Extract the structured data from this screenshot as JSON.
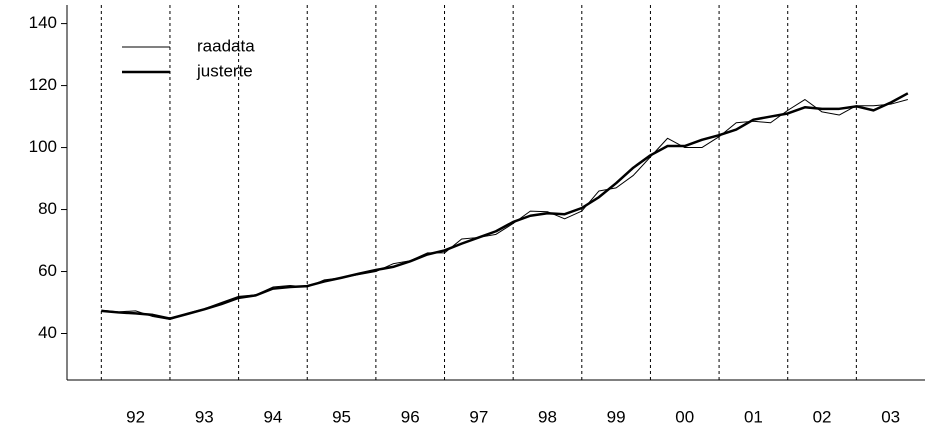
{
  "chart_data": {
    "type": "line",
    "x": [
      1992,
      1992.25,
      1992.5,
      1992.75,
      1993,
      1993.25,
      1993.5,
      1993.75,
      1994,
      1994.25,
      1994.5,
      1994.75,
      1995,
      1995.25,
      1995.5,
      1995.75,
      1996,
      1996.25,
      1996.5,
      1996.75,
      1997,
      1997.25,
      1997.5,
      1997.75,
      1998,
      1998.25,
      1998.5,
      1998.75,
      1999,
      1999.25,
      1999.5,
      1999.75,
      2000,
      2000.25,
      2000.5,
      2000.75,
      2001,
      2001.25,
      2001.5,
      2001.75,
      2002,
      2002.25,
      2002.5,
      2002.75,
      2003,
      2003.25,
      2003.5,
      2003.75
    ],
    "series": [
      {
        "name": "raadata",
        "color": "#000000",
        "width": 1,
        "values": [
          47.5,
          47.0,
          47.3,
          45.5,
          44.5,
          46.5,
          48.0,
          50.0,
          52.0,
          52.5,
          55.0,
          55.5,
          55.0,
          57.3,
          58.0,
          59.0,
          60.0,
          62.5,
          63.5,
          66.0,
          66.0,
          70.5,
          71.0,
          72.0,
          75.5,
          79.5,
          79.3,
          77.0,
          79.5,
          86.0,
          87.0,
          91.0,
          97.0,
          103.0,
          100.0,
          100.0,
          103.5,
          108.0,
          108.5,
          108.0,
          112.0,
          115.5,
          111.5,
          110.5,
          113.5,
          113.5,
          114.0,
          115.5
        ]
      },
      {
        "name": "justerte",
        "color": "#000000",
        "width": 2.5,
        "values": [
          47.3,
          46.8,
          46.5,
          46.0,
          44.8,
          46.3,
          47.8,
          49.5,
          51.5,
          52.3,
          54.5,
          55.0,
          55.3,
          56.8,
          58.0,
          59.3,
          60.5,
          61.5,
          63.3,
          65.5,
          66.8,
          69.0,
          71.0,
          73.0,
          76.0,
          78.0,
          78.8,
          78.5,
          80.5,
          84.0,
          88.5,
          93.5,
          97.5,
          100.5,
          100.5,
          102.5,
          104.0,
          105.8,
          109.0,
          110.0,
          111.0,
          113.0,
          112.5,
          112.5,
          113.3,
          112.0,
          114.5,
          117.5
        ]
      }
    ],
    "xlim": [
      1991.5,
      2004
    ],
    "xticks": [
      {
        "value": 1992.5,
        "label": "92"
      },
      {
        "value": 1993.5,
        "label": "93"
      },
      {
        "value": 1994.5,
        "label": "94"
      },
      {
        "value": 1995.5,
        "label": "95"
      },
      {
        "value": 1996.5,
        "label": "96"
      },
      {
        "value": 1997.5,
        "label": "97"
      },
      {
        "value": 1998.5,
        "label": "98"
      },
      {
        "value": 1999.5,
        "label": "99"
      },
      {
        "value": 2000.5,
        "label": "00"
      },
      {
        "value": 2001.5,
        "label": "01"
      },
      {
        "value": 2002.5,
        "label": "02"
      },
      {
        "value": 2003.5,
        "label": "03"
      }
    ],
    "vlines": [
      1992,
      1993,
      1994,
      1995,
      1996,
      1997,
      1998,
      1999,
      2000,
      2001,
      2002,
      2003
    ],
    "ylim": [
      25,
      146
    ],
    "yticks": [
      40,
      60,
      80,
      100,
      120,
      140
    ],
    "legend": "upper-left"
  }
}
